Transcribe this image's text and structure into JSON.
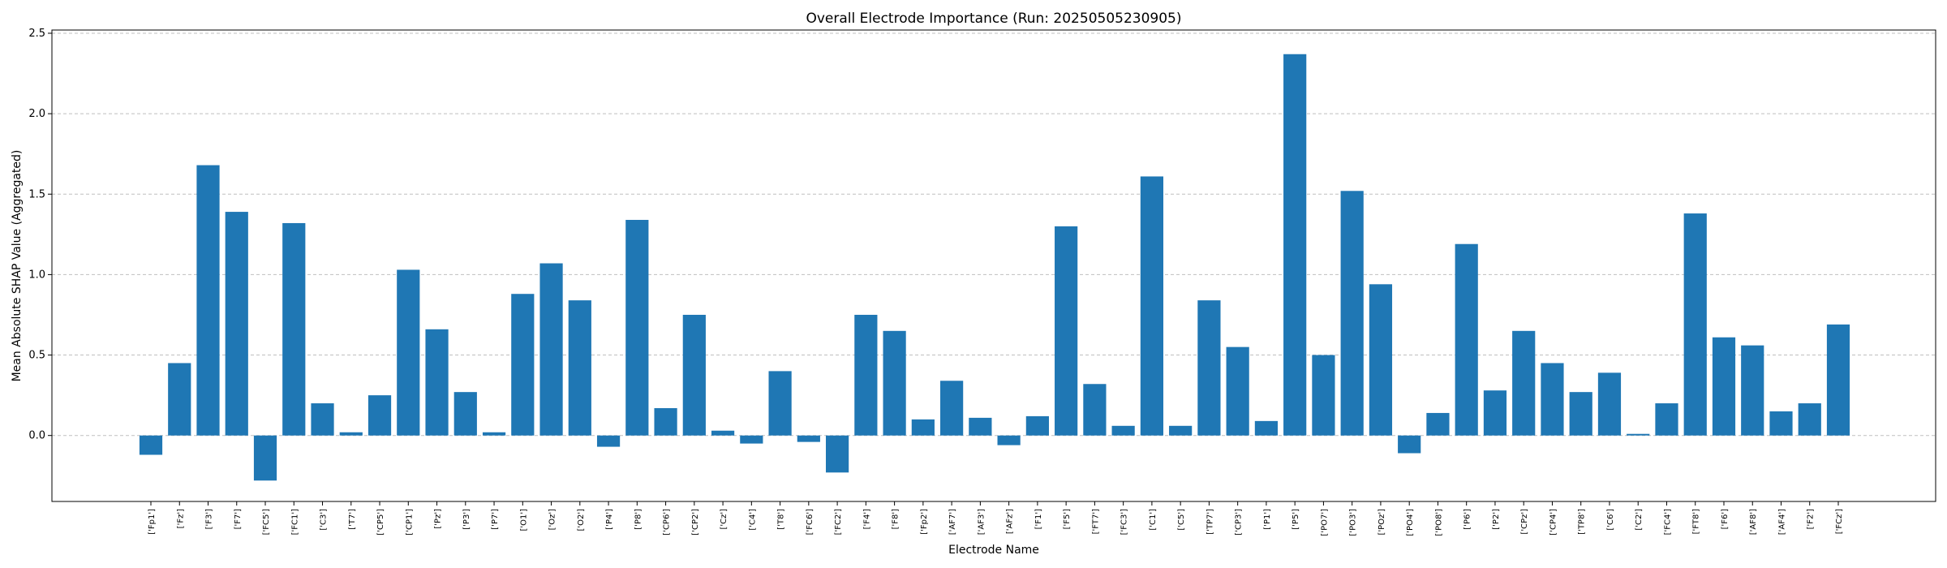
{
  "chart_data": {
    "type": "bar",
    "title": "Overall Electrode Importance (Run: 20250505230905)",
    "xlabel": "Electrode Name",
    "ylabel": "Mean Absolute SHAP Value (Aggregated)",
    "ylim": [
      -0.41,
      2.52
    ],
    "yticks": [
      0.0,
      0.5,
      1.0,
      1.5,
      2.0,
      2.5
    ],
    "ytick_labels": [
      "0.0",
      "0.5",
      "1.0",
      "1.5",
      "2.0",
      "2.5"
    ],
    "grid": "y-dashed",
    "bar_color": "#1f77b4",
    "categories": [
      "['Fp1']",
      "['Fz']",
      "['F3']",
      "['F7']",
      "['FC5']",
      "['FC1']",
      "['C3']",
      "['T7']",
      "['CP5']",
      "['CP1']",
      "['Pz']",
      "['P3']",
      "['P7']",
      "['O1']",
      "['Oz']",
      "['O2']",
      "['P4']",
      "['P8']",
      "['CP6']",
      "['CP2']",
      "['Cz']",
      "['C4']",
      "['T8']",
      "['FC6']",
      "['FC2']",
      "['F4']",
      "['F8']",
      "['Fp2']",
      "['AF7']",
      "['AF3']",
      "['AFz']",
      "['F1']",
      "['F5']",
      "['FT7']",
      "['FC3']",
      "['C1']",
      "['C5']",
      "['TP7']",
      "['CP3']",
      "['P1']",
      "['P5']",
      "['PO7']",
      "['PO3']",
      "['POz']",
      "['PO4']",
      "['PO8']",
      "['P6']",
      "['P2']",
      "['CPz']",
      "['CP4']",
      "['TP8']",
      "['C6']",
      "['C2']",
      "['FC4']",
      "['FT8']",
      "['F6']",
      "['AF8']",
      "['AF4']",
      "['F2']",
      "['FCz']"
    ],
    "values": [
      -0.12,
      0.45,
      1.68,
      1.39,
      -0.28,
      1.32,
      0.2,
      0.02,
      0.25,
      1.03,
      0.66,
      0.27,
      0.02,
      0.88,
      1.07,
      0.84,
      -0.07,
      1.34,
      0.17,
      0.75,
      0.03,
      -0.05,
      0.4,
      -0.04,
      -0.23,
      0.75,
      0.65,
      0.1,
      0.34,
      0.11,
      -0.06,
      0.12,
      1.3,
      0.32,
      0.06,
      1.61,
      0.06,
      0.84,
      0.55,
      0.09,
      2.37,
      0.5,
      1.52,
      0.94,
      -0.11,
      0.14,
      1.19,
      0.28,
      0.65,
      0.45,
      0.27,
      0.39,
      0.01,
      0.2,
      1.38,
      0.61,
      0.56,
      0.15,
      0.2,
      0.69
    ]
  }
}
